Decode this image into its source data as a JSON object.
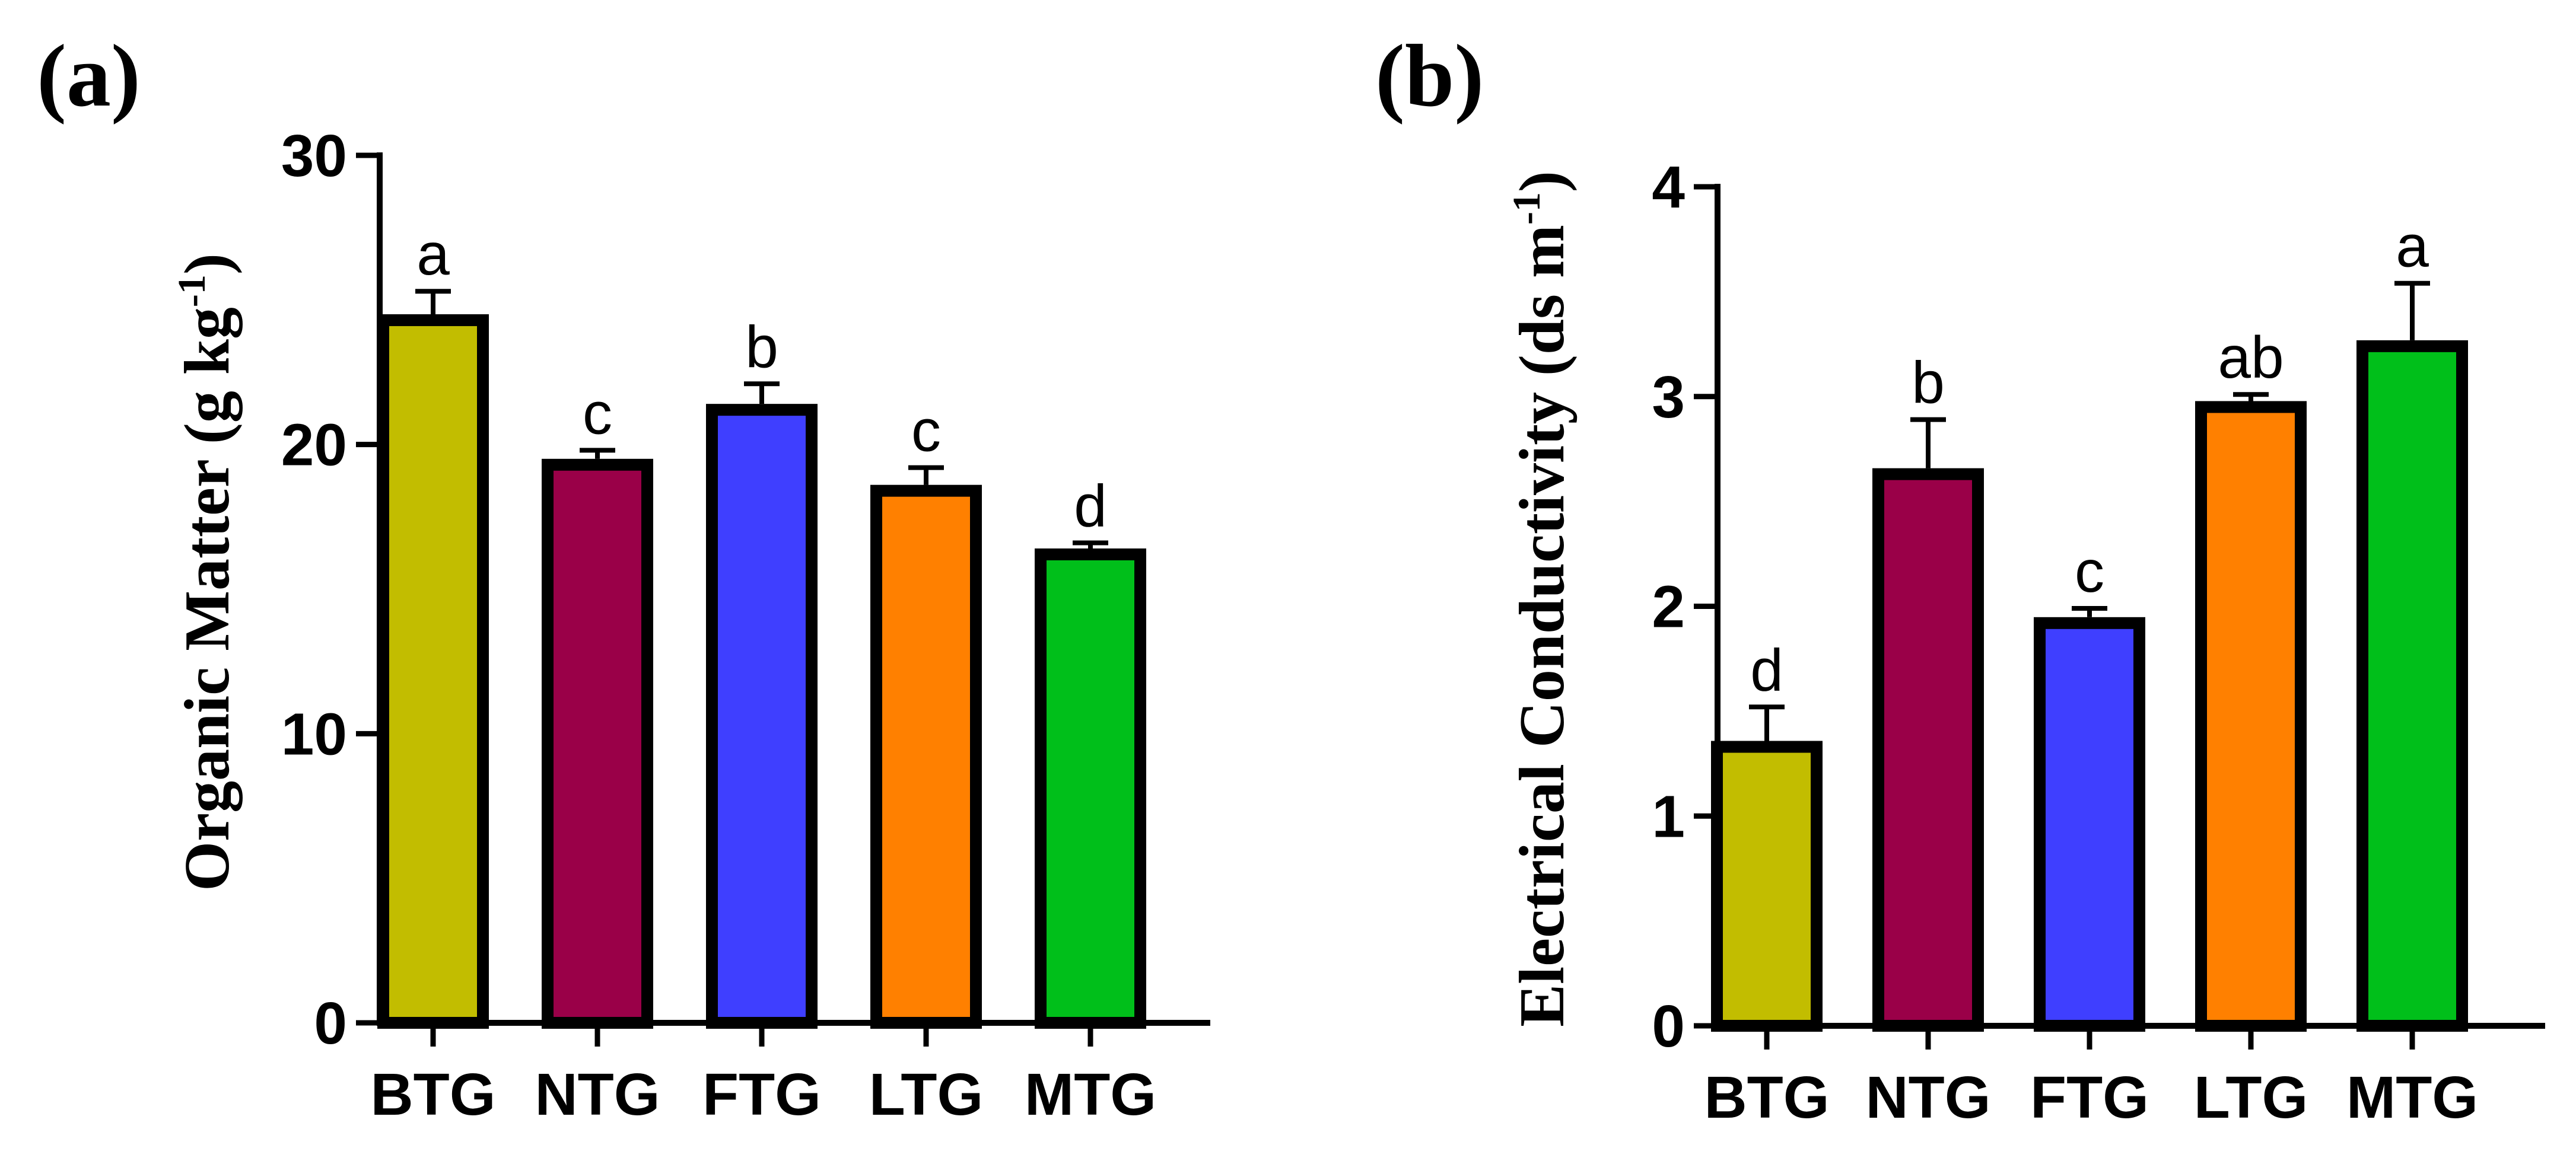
{
  "chart_data": [
    {
      "type": "bar",
      "panel_label": "(a)",
      "title": "",
      "xlabel": "",
      "ylabel": "Organic Matter (g kg",
      "ylabel_superscript": "-1",
      "ylabel_close": ")",
      "categories": [
        "BTG",
        "NTG",
        "FTG",
        "LTG",
        "MTG"
      ],
      "values": [
        24.3,
        19.3,
        21.2,
        18.4,
        16.2
      ],
      "errors": [
        1.0,
        0.5,
        0.9,
        0.8,
        0.4
      ],
      "significance": [
        "a",
        "c",
        "b",
        "c",
        "d"
      ],
      "colors": [
        "#c2bd00",
        "#9a0048",
        "#3f3fff",
        "#ff8000",
        "#00bf1a"
      ],
      "ylim": [
        0,
        30
      ],
      "yticks": [
        0,
        10,
        20,
        30
      ],
      "ytick_labels": [
        "0",
        "10",
        "20",
        "30"
      ]
    },
    {
      "type": "bar",
      "panel_label": "(b)",
      "title": "",
      "xlabel": "",
      "ylabel": "Electrical Conductivity (ds m",
      "ylabel_superscript": "-1",
      "ylabel_close": ")",
      "categories": [
        "BTG",
        "NTG",
        "FTG",
        "LTG",
        "MTG"
      ],
      "values": [
        1.33,
        2.63,
        1.92,
        2.95,
        3.24
      ],
      "errors": [
        0.19,
        0.26,
        0.07,
        0.06,
        0.3
      ],
      "significance": [
        "d",
        "b",
        "c",
        "ab",
        "a"
      ],
      "colors": [
        "#c2bd00",
        "#9a0048",
        "#3f3fff",
        "#ff8000",
        "#00bf1a"
      ],
      "ylim": [
        0,
        4
      ],
      "yticks": [
        0,
        1,
        2,
        3,
        4
      ],
      "ytick_labels": [
        "0",
        "1",
        "2",
        "3",
        "4"
      ]
    }
  ]
}
